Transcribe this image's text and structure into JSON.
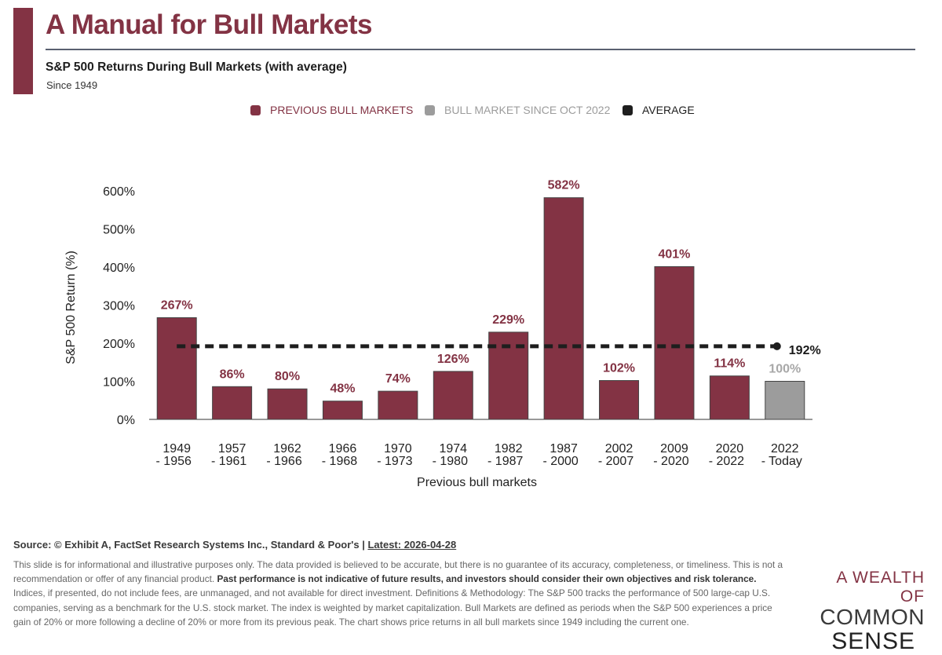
{
  "header": {
    "title": "A Manual for Bull Markets",
    "subtitle": "S&P 500 Returns During Bull Markets (with average)",
    "since": "Since 1949"
  },
  "legend": {
    "previous": "PREVIOUS BULL MARKETS",
    "current": "BULL MARKET SINCE OCT 2022",
    "average": "AVERAGE"
  },
  "colors": {
    "previous": "#833344",
    "current": "#9c9c9c",
    "average": "#1e1e1e",
    "current_label": "#a8a8a8"
  },
  "chart_data": {
    "type": "bar",
    "title": "S&P 500 Returns During Bull Markets (with average)",
    "xlabel": "Previous bull markets",
    "ylabel": "S&P 500 Return (%)",
    "ylim": [
      0,
      600
    ],
    "yticks": [
      "0%",
      "100%",
      "200%",
      "300%",
      "400%",
      "500%",
      "600%"
    ],
    "categories": [
      [
        "1949",
        "- 1956"
      ],
      [
        "1957",
        "- 1961"
      ],
      [
        "1962",
        "- 1966"
      ],
      [
        "1966",
        "- 1968"
      ],
      [
        "1970",
        "- 1973"
      ],
      [
        "1974",
        "- 1980"
      ],
      [
        "1982",
        "- 1987"
      ],
      [
        "1987",
        "- 2000"
      ],
      [
        "2002",
        "- 2007"
      ],
      [
        "2009",
        "- 2020"
      ],
      [
        "2020",
        "- 2022"
      ],
      [
        "2022",
        "- Today"
      ]
    ],
    "values": [
      267,
      86,
      80,
      48,
      74,
      126,
      229,
      582,
      102,
      401,
      114,
      100
    ],
    "value_labels": [
      "267%",
      "86%",
      "80%",
      "48%",
      "74%",
      "126%",
      "229%",
      "582%",
      "102%",
      "401%",
      "114%",
      "100%"
    ],
    "series_kind": [
      "previous",
      "previous",
      "previous",
      "previous",
      "previous",
      "previous",
      "previous",
      "previous",
      "previous",
      "previous",
      "previous",
      "current"
    ],
    "average": {
      "value": 192,
      "label": "192%"
    },
    "grid": false
  },
  "footer": {
    "source_prefix": "Source: © Exhibit A, FactSet Research Systems Inc., Standard & Poor's | ",
    "source_latest": "Latest: 2026-04-28",
    "disclaimer_1": "This slide is for informational and illustrative purposes only. The data provided is believed to be accurate, but there is no guarantee of its accuracy, completeness, or timeliness. This is not a recommendation or offer of any financial product. ",
    "disclaimer_bold": "Past performance is not indicative of future results, and investors should consider their own objectives and risk tolerance.",
    "disclaimer_2": " Indices, if presented, do not include fees, are unmanaged, and not available for direct investment. Definitions & Methodology: The S&P 500 tracks the performance of 500 large-cap U.S. companies, serving as a benchmark for the U.S. stock market. The index is weighted by market capitalization. Bull Markets are defined as periods when the S&P 500 experiences a price gain of 20% or more following a decline of 20% or more from its previous peak. The chart shows price returns in all bull markets since 1949 including the current one."
  },
  "brand": {
    "line1": "A WEALTH OF",
    "line2": "COMMON",
    "line3": "SENSE"
  }
}
